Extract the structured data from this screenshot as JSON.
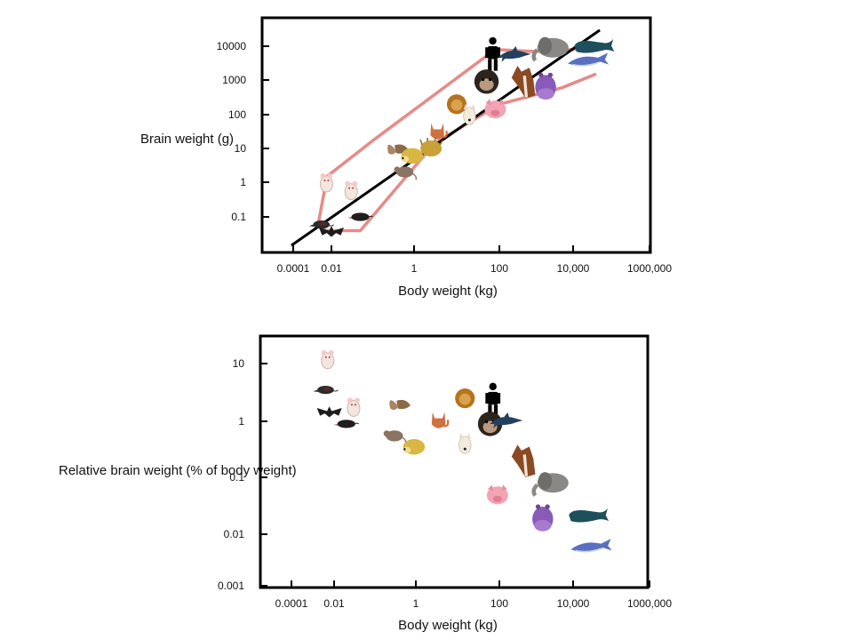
{
  "chart_data": [
    {
      "type": "scatter",
      "xlabel": "Body weight (kg)",
      "ylabel": "Brain weight (g)",
      "x_scale": "log",
      "y_scale": "log",
      "xlim": [
        0.0001,
        1000000
      ],
      "ylim": [
        0.01,
        100000
      ],
      "x_tick_labels": [
        "0.0001",
        "0.01",
        "1",
        "100",
        "10,000",
        "1000,000"
      ],
      "y_tick_labels": [
        "0.1",
        "1",
        "10",
        "100",
        "1000",
        "10000"
      ],
      "x_ticks": [
        0.0001,
        0.01,
        1,
        100,
        10000,
        1000000
      ],
      "y_ticks": [
        0.1,
        1,
        10,
        100,
        1000,
        10000
      ],
      "regression_line": [
        [
          8e-05,
          0.015
        ],
        [
          50000,
          30000
        ]
      ],
      "envelope_upper": [
        [
          0.002,
          0.06
        ],
        [
          0.006,
          1.5
        ],
        [
          0.1,
          17
        ],
        [
          80,
          8000
        ],
        [
          800,
          7000
        ],
        [
          10000,
          8000
        ],
        [
          40000,
          10000
        ]
      ],
      "envelope_lower": [
        [
          0.002,
          0.06
        ],
        [
          0.005,
          0.04
        ],
        [
          0.05,
          0.04
        ],
        [
          3,
          14
        ],
        [
          100,
          200
        ],
        [
          5000,
          600
        ],
        [
          40000,
          1500
        ]
      ],
      "points": [
        {
          "animal": "human",
          "icon": "human-icon",
          "x": 70,
          "y": 6000
        },
        {
          "animal": "dolphin",
          "icon": "dolphin-icon",
          "x": 250,
          "y": 5500
        },
        {
          "animal": "elephant",
          "icon": "elephant-icon",
          "x": 2500,
          "y": 9000
        },
        {
          "animal": "sperm whale",
          "icon": "sperm-whale-icon",
          "x": 35000,
          "y": 9000
        },
        {
          "animal": "blue whale",
          "icon": "blue-whale-icon",
          "x": 25000,
          "y": 4000
        },
        {
          "animal": "chimpanzee",
          "icon": "chimpanzee-icon",
          "x": 50,
          "y": 900
        },
        {
          "animal": "horse",
          "icon": "horse-icon",
          "x": 450,
          "y": 900
        },
        {
          "animal": "hippopotamus",
          "icon": "hippopotamus-icon",
          "x": 1800,
          "y": 700
        },
        {
          "animal": "lion",
          "icon": "lion-icon",
          "x": 10,
          "y": 200
        },
        {
          "animal": "dog",
          "icon": "dog-icon",
          "x": 20,
          "y": 100
        },
        {
          "animal": "pig",
          "icon": "pig-icon",
          "x": 80,
          "y": 150
        },
        {
          "animal": "cat",
          "icon": "cat-icon",
          "x": 3.5,
          "y": 30
        },
        {
          "animal": "squirrel",
          "icon": "squirrel-icon",
          "x": 0.4,
          "y": 10
        },
        {
          "animal": "hedgehog",
          "icon": "hedgehog-icon",
          "x": 0.9,
          "y": 6
        },
        {
          "animal": "porcupine",
          "icon": "porcupine-icon",
          "x": 2.5,
          "y": 10
        },
        {
          "animal": "rat",
          "icon": "rat-icon",
          "x": 0.6,
          "y": 2
        },
        {
          "animal": "mouse",
          "icon": "white-mouse-icon",
          "x": 0.03,
          "y": 0.6
        },
        {
          "animal": "white mouse",
          "icon": "white-mouse-icon",
          "x": 0.0055,
          "y": 1
        },
        {
          "animal": "shrew",
          "icon": "shrew-icon",
          "x": 0.003,
          "y": 0.06
        },
        {
          "animal": "bat",
          "icon": "bat-icon",
          "x": 0.01,
          "y": 0.04
        },
        {
          "animal": "mole",
          "icon": "mole-icon",
          "x": 0.05,
          "y": 0.1
        }
      ]
    },
    {
      "type": "scatter",
      "xlabel": "Body weight (kg)",
      "ylabel": "Relative brain weight (% of body weight)",
      "x_scale": "log",
      "y_scale": "log",
      "xlim": [
        0.0001,
        1000000
      ],
      "ylim": [
        0.001,
        30
      ],
      "x_tick_labels": [
        "0.0001",
        "0.01",
        "1",
        "100",
        "10,000",
        "1000,000"
      ],
      "y_tick_labels": [
        "0.001",
        "0.01",
        "0.1",
        "1",
        "10"
      ],
      "x_ticks": [
        0.0001,
        0.01,
        1,
        100,
        10000,
        1000000
      ],
      "y_ticks": [
        0.001,
        0.01,
        0.1,
        1,
        10
      ],
      "points": [
        {
          "animal": "white mouse",
          "icon": "white-mouse-icon",
          "x": 0.005,
          "y": 12
        },
        {
          "animal": "shrew",
          "icon": "shrew-icon",
          "x": 0.004,
          "y": 3.5
        },
        {
          "animal": "bat",
          "icon": "bat-icon",
          "x": 0.006,
          "y": 1.5
        },
        {
          "animal": "mouse",
          "icon": "white-mouse-icon",
          "x": 0.03,
          "y": 1.8
        },
        {
          "animal": "mole",
          "icon": "mole-icon",
          "x": 0.02,
          "y": 0.9
        },
        {
          "animal": "squirrel",
          "icon": "squirrel-icon",
          "x": 0.4,
          "y": 2
        },
        {
          "animal": "rat",
          "icon": "rat-icon",
          "x": 0.3,
          "y": 0.55
        },
        {
          "animal": "hedgehog",
          "icon": "hedgehog-icon",
          "x": 0.9,
          "y": 0.35
        },
        {
          "animal": "cat",
          "icon": "cat-icon",
          "x": 3.5,
          "y": 1
        },
        {
          "animal": "lion",
          "icon": "lion-icon",
          "x": 15,
          "y": 2.5
        },
        {
          "animal": "dog",
          "icon": "dog-icon",
          "x": 15,
          "y": 0.4
        },
        {
          "animal": "human",
          "icon": "human-icon",
          "x": 70,
          "y": 2.4
        },
        {
          "animal": "chimpanzee",
          "icon": "chimpanzee-icon",
          "x": 60,
          "y": 0.9
        },
        {
          "animal": "dolphin",
          "icon": "dolphin-icon",
          "x": 150,
          "y": 1
        },
        {
          "animal": "horse",
          "icon": "horse-icon",
          "x": 450,
          "y": 0.2
        },
        {
          "animal": "pig",
          "icon": "pig-icon",
          "x": 90,
          "y": 0.05
        },
        {
          "animal": "elephant",
          "icon": "elephant-icon",
          "x": 2500,
          "y": 0.08
        },
        {
          "animal": "hippopotamus",
          "icon": "hippopotamus-icon",
          "x": 1500,
          "y": 0.02
        },
        {
          "animal": "sperm whale",
          "icon": "sperm-whale-icon",
          "x": 25000,
          "y": 0.02
        },
        {
          "animal": "blue whale",
          "icon": "blue-whale-icon",
          "x": 30000,
          "y": 0.006
        }
      ]
    }
  ]
}
